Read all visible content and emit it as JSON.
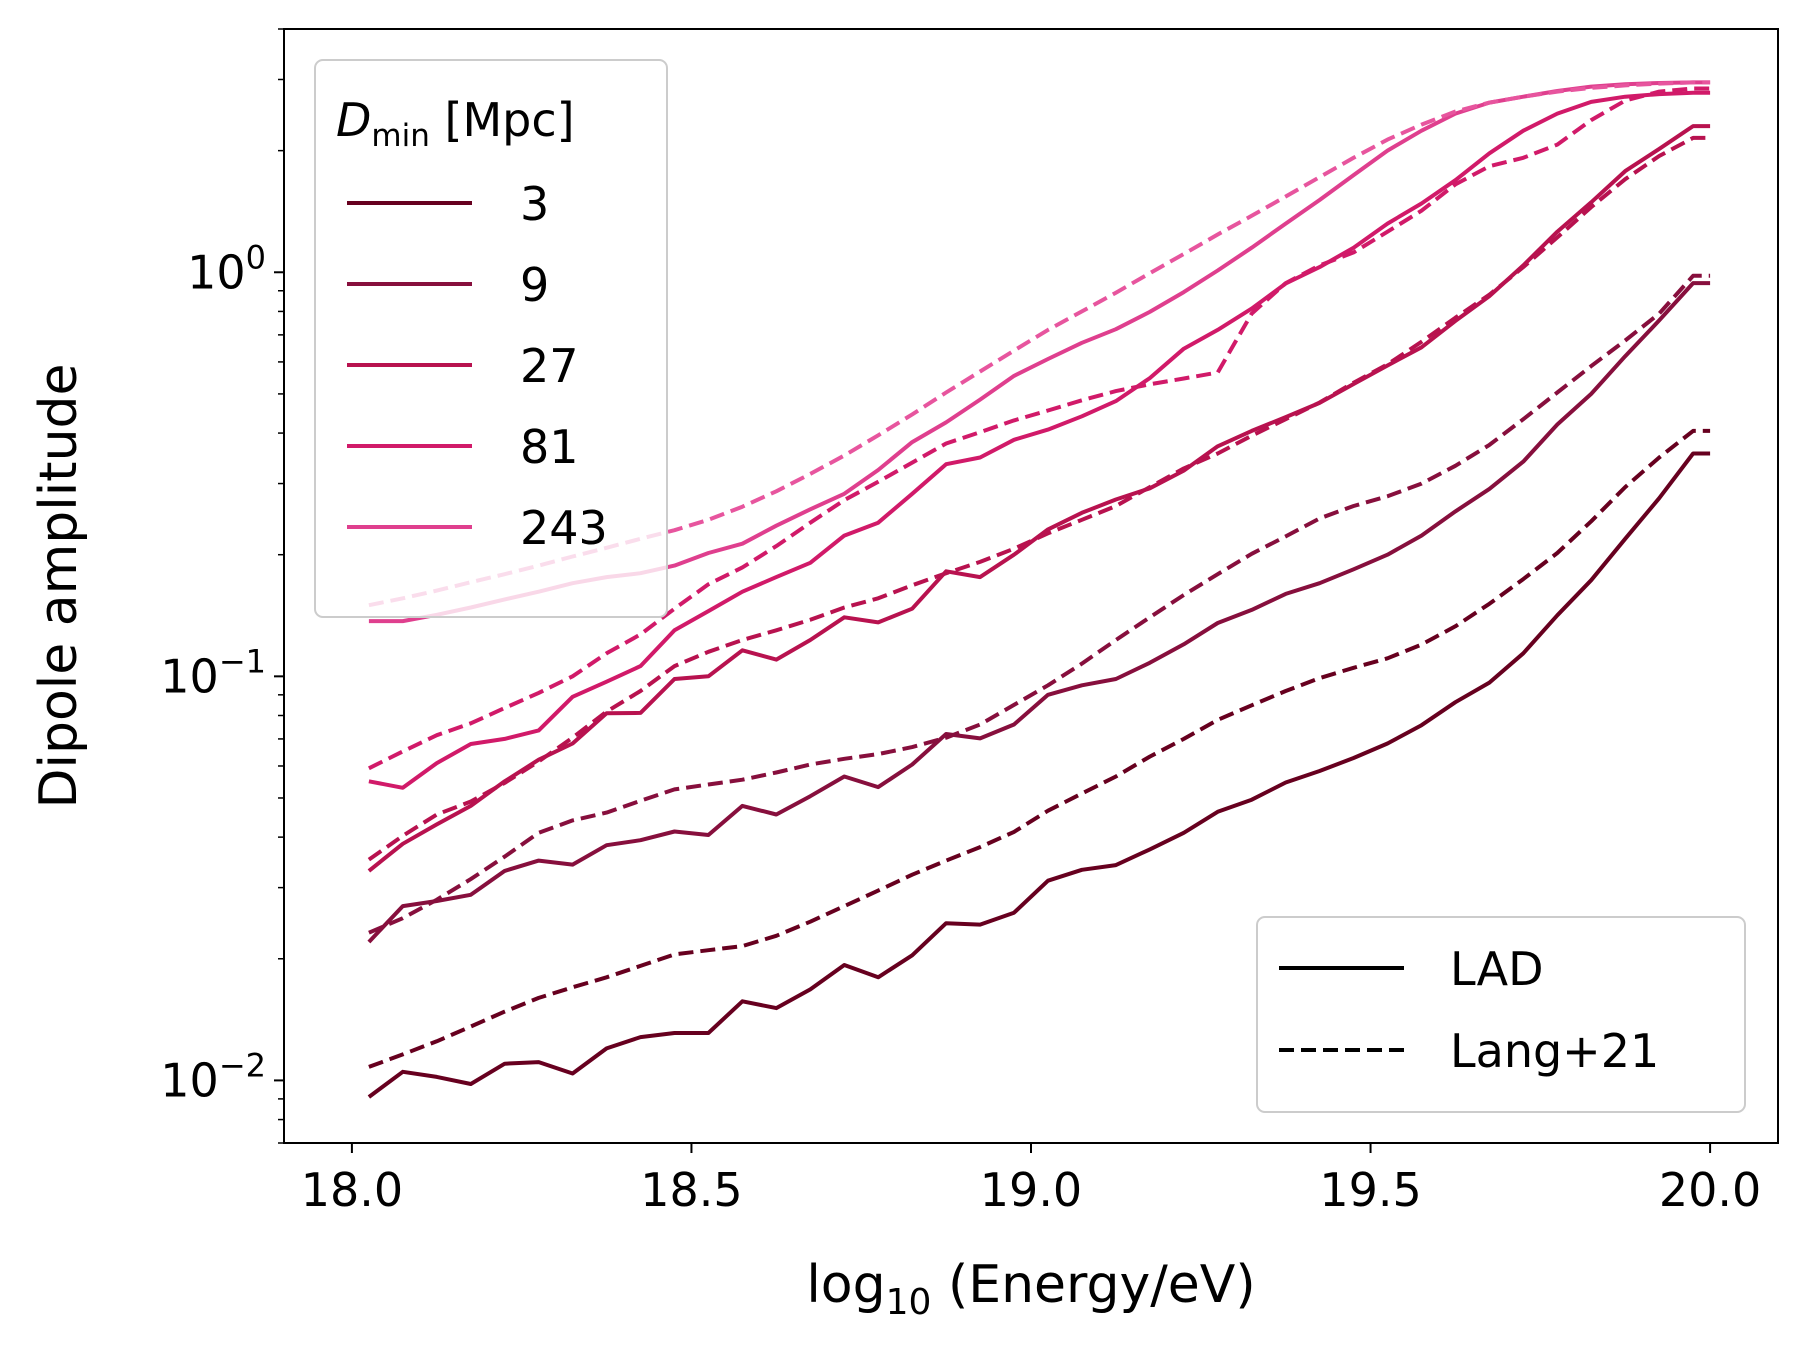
{
  "chart_data": {
    "type": "line",
    "xlabel": "log₁₀(Energy/eV)",
    "ylabel": "Dipole amplitude",
    "xlim": [
      17.9,
      20.1
    ],
    "ylim": [
      0.007,
      4.0
    ],
    "yscale": "log",
    "x_ticks": [
      "18.0",
      "18.5",
      "19.0",
      "19.5",
      "20.0"
    ],
    "y_ticks": [
      {
        "value": 0.01,
        "base": "10",
        "exp": "−2"
      },
      {
        "value": 0.1,
        "base": "10",
        "exp": "−1"
      },
      {
        "value": 1,
        "base": "10",
        "exp": "0"
      }
    ],
    "legend_colors": {
      "title": "D",
      "title_sub": "min",
      "title_unit": "[Mpc]",
      "placement": "upper-left",
      "entries": [
        "3",
        "9",
        "27",
        "81",
        "243"
      ]
    },
    "legend_styles": {
      "placement": "lower-right",
      "entries": [
        {
          "label": "LAD",
          "style": "solid"
        },
        {
          "label": "Lang+21",
          "style": "dashed"
        }
      ]
    },
    "x": [
      18.025,
      18.075,
      18.125,
      18.175,
      18.225,
      18.275,
      18.325,
      18.375,
      18.425,
      18.475,
      18.525,
      18.575,
      18.625,
      18.675,
      18.725,
      18.775,
      18.825,
      18.875,
      18.925,
      18.975,
      19.025,
      19.075,
      19.125,
      19.175,
      19.225,
      19.275,
      19.325,
      19.375,
      19.425,
      19.475,
      19.525,
      19.575,
      19.625,
      19.675,
      19.725,
      19.775,
      19.825,
      19.875,
      19.925,
      19.975,
      20.0
    ],
    "series": [
      {
        "name": "3",
        "style": "solid",
        "color": "#67001f",
        "values": [
          0.0091,
          0.0105,
          0.0102,
          0.0098,
          0.011,
          0.0111,
          0.0104,
          0.012,
          0.0128,
          0.0131,
          0.0131,
          0.0157,
          0.0151,
          0.0168,
          0.0193,
          0.018,
          0.0204,
          0.0245,
          0.0243,
          0.026,
          0.0312,
          0.0332,
          0.0341,
          0.0373,
          0.041,
          0.0462,
          0.0495,
          0.0546,
          0.0583,
          0.0628,
          0.0682,
          0.0757,
          0.0863,
          0.0965,
          0.114,
          0.1416,
          0.173,
          0.219,
          0.276,
          0.356,
          0.356
        ]
      },
      {
        "name": "3",
        "style": "dashed",
        "color": "#67001f",
        "values": [
          0.0108,
          0.0116,
          0.0125,
          0.0136,
          0.0148,
          0.016,
          0.017,
          0.018,
          0.0192,
          0.0205,
          0.021,
          0.0215,
          0.0228,
          0.0247,
          0.027,
          0.0295,
          0.0323,
          0.035,
          0.0378,
          0.0412,
          0.0465,
          0.0513,
          0.0565,
          0.0633,
          0.07,
          0.078,
          0.0848,
          0.092,
          0.099,
          0.105,
          0.1108,
          0.1198,
          0.133,
          0.1512,
          0.174,
          0.202,
          0.242,
          0.294,
          0.348,
          0.405,
          0.405
        ]
      },
      {
        "name": "9",
        "style": "solid",
        "color": "#870f3d",
        "values": [
          0.022,
          0.027,
          0.0278,
          0.0288,
          0.033,
          0.035,
          0.0342,
          0.0382,
          0.0393,
          0.0413,
          0.0405,
          0.0478,
          0.0455,
          0.0505,
          0.0565,
          0.0532,
          0.0605,
          0.072,
          0.0702,
          0.076,
          0.09,
          0.095,
          0.0985,
          0.108,
          0.12,
          0.1355,
          0.146,
          0.16,
          0.17,
          0.184,
          0.2,
          0.223,
          0.256,
          0.291,
          0.34,
          0.42,
          0.5,
          0.62,
          0.76,
          0.94,
          0.94
        ]
      },
      {
        "name": "9",
        "style": "dashed",
        "color": "#870f3d",
        "values": [
          0.0232,
          0.0252,
          0.028,
          0.0315,
          0.0358,
          0.041,
          0.044,
          0.046,
          0.0492,
          0.0525,
          0.054,
          0.0555,
          0.0578,
          0.0605,
          0.0625,
          0.0642,
          0.0668,
          0.0705,
          0.076,
          0.085,
          0.095,
          0.1075,
          0.123,
          0.14,
          0.159,
          0.179,
          0.201,
          0.222,
          0.246,
          0.264,
          0.279,
          0.3,
          0.332,
          0.374,
          0.433,
          0.504,
          0.586,
          0.678,
          0.79,
          0.98,
          0.98
        ]
      },
      {
        "name": "27",
        "style": "solid",
        "color": "#b8124f",
        "values": [
          0.033,
          0.0385,
          0.043,
          0.0478,
          0.055,
          0.0622,
          0.0682,
          0.081,
          0.0812,
          0.0985,
          0.1,
          0.116,
          0.11,
          0.123,
          0.14,
          0.136,
          0.147,
          0.182,
          0.176,
          0.2,
          0.231,
          0.254,
          0.274,
          0.292,
          0.323,
          0.371,
          0.405,
          0.438,
          0.475,
          0.529,
          0.588,
          0.652,
          0.758,
          0.873,
          1.04,
          1.26,
          1.49,
          1.78,
          2.02,
          2.3,
          2.3
        ]
      },
      {
        "name": "27",
        "style": "dashed",
        "color": "#b8124f",
        "values": [
          0.0352,
          0.0403,
          0.0455,
          0.049,
          0.0545,
          0.0616,
          0.0705,
          0.0818,
          0.092,
          0.106,
          0.115,
          0.123,
          0.13,
          0.138,
          0.148,
          0.156,
          0.168,
          0.18,
          0.192,
          0.207,
          0.226,
          0.244,
          0.264,
          0.294,
          0.327,
          0.356,
          0.394,
          0.433,
          0.476,
          0.533,
          0.592,
          0.673,
          0.772,
          0.88,
          1.03,
          1.22,
          1.45,
          1.7,
          1.94,
          2.15,
          2.15
        ]
      },
      {
        "name": "81",
        "style": "solid",
        "color": "#d11a69",
        "values": [
          0.055,
          0.053,
          0.061,
          0.068,
          0.07,
          0.0735,
          0.089,
          0.097,
          0.106,
          0.13,
          0.145,
          0.162,
          0.176,
          0.191,
          0.223,
          0.24,
          0.283,
          0.335,
          0.348,
          0.385,
          0.408,
          0.44,
          0.48,
          0.547,
          0.647,
          0.72,
          0.813,
          0.938,
          1.03,
          1.15,
          1.32,
          1.48,
          1.69,
          1.97,
          2.24,
          2.47,
          2.64,
          2.72,
          2.76,
          2.78,
          2.78
        ]
      },
      {
        "name": "81",
        "style": "dashed",
        "color": "#d11a69",
        "values": [
          0.0592,
          0.0652,
          0.0715,
          0.0765,
          0.0835,
          0.091,
          0.1,
          0.114,
          0.127,
          0.147,
          0.169,
          0.186,
          0.21,
          0.24,
          0.273,
          0.303,
          0.338,
          0.377,
          0.402,
          0.43,
          0.455,
          0.482,
          0.508,
          0.528,
          0.546,
          0.565,
          0.79,
          0.94,
          1.04,
          1.12,
          1.26,
          1.42,
          1.65,
          1.83,
          1.92,
          2.07,
          2.38,
          2.66,
          2.8,
          2.85,
          2.85
        ]
      },
      {
        "name": "243",
        "style": "solid",
        "color": "#df3f8e",
        "values": [
          0.137,
          0.137,
          0.142,
          0.148,
          0.155,
          0.162,
          0.17,
          0.176,
          0.18,
          0.188,
          0.202,
          0.213,
          0.236,
          0.259,
          0.283,
          0.324,
          0.38,
          0.425,
          0.484,
          0.554,
          0.61,
          0.669,
          0.723,
          0.798,
          0.893,
          1.01,
          1.15,
          1.32,
          1.51,
          1.74,
          2.0,
          2.24,
          2.47,
          2.63,
          2.72,
          2.81,
          2.88,
          2.92,
          2.94,
          2.95,
          2.95
        ]
      },
      {
        "name": "243",
        "style": "dashed",
        "color": "#e7559e",
        "values": [
          0.15,
          0.156,
          0.163,
          0.171,
          0.179,
          0.188,
          0.198,
          0.208,
          0.219,
          0.23,
          0.244,
          0.263,
          0.287,
          0.317,
          0.352,
          0.395,
          0.445,
          0.504,
          0.568,
          0.64,
          0.72,
          0.8,
          0.89,
          0.995,
          1.11,
          1.24,
          1.38,
          1.54,
          1.72,
          1.92,
          2.13,
          2.32,
          2.5,
          2.63,
          2.72,
          2.8,
          2.86,
          2.9,
          2.93,
          2.95,
          2.95
        ]
      }
    ]
  }
}
